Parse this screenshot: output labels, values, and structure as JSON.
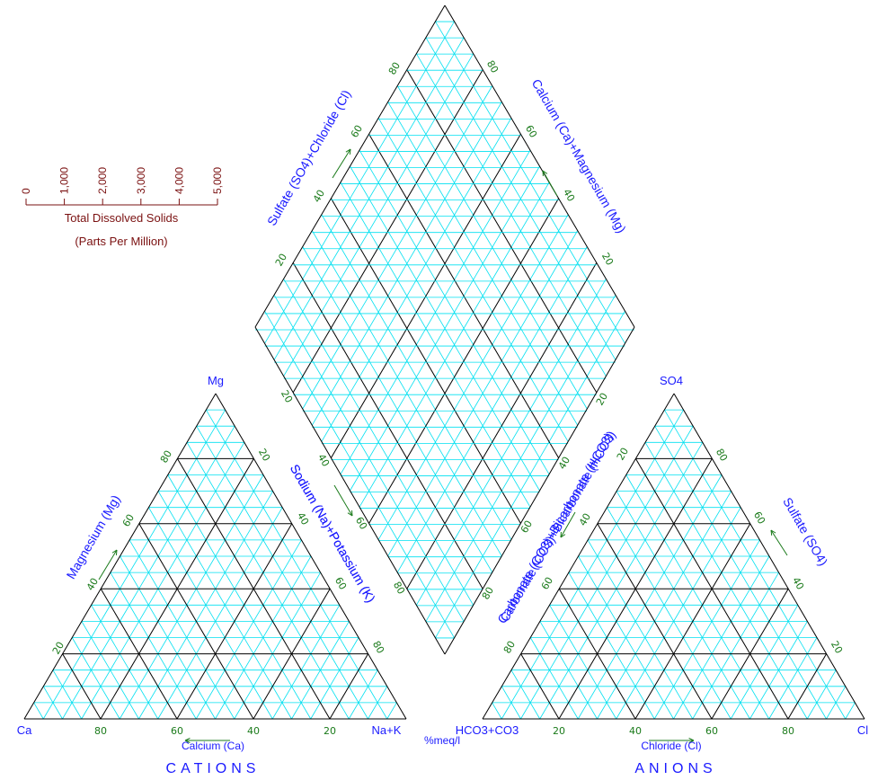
{
  "colors": {
    "minor_grid": "#00e0f0",
    "major_grid": "#000000",
    "text": "#1a1aff",
    "tick": "#1a7a1a",
    "tds": "#7a1010"
  },
  "tds_scale": {
    "ticks": [
      "0",
      "1,000",
      "2,000",
      "3,000",
      "4,000",
      "5,000"
    ],
    "title": "Total Dissolved Solids",
    "subtitle": "(Parts Per Million)"
  },
  "cations": {
    "title": "CATIONS",
    "top_vertex": "Mg",
    "left_vertex": "Ca",
    "right_vertex": "Na+K",
    "left_axis": "Magnesium (Mg)",
    "right_axis": "Sodium (Na)+Potassium (K)",
    "bottom_axis": "Calcium (Ca)",
    "left_ticks": [
      "20",
      "40",
      "60",
      "80"
    ],
    "right_ticks": [
      "20",
      "40",
      "60",
      "80"
    ],
    "bottom_ticks": [
      "80",
      "60",
      "40",
      "20"
    ]
  },
  "anions": {
    "title": "ANIONS",
    "top_vertex": "SO4",
    "left_vertex": "HCO3+CO3",
    "right_vertex": "Cl",
    "left_axis": "Carbonate (CO3)+Bicarbonate (HCO3)",
    "right_axis": "Sulfate (SO4)",
    "bottom_axis": "Chloride (Cl)",
    "left_ticks": [
      "80",
      "60",
      "40",
      "20"
    ],
    "right_ticks": [
      "80",
      "60",
      "40",
      "20"
    ],
    "bottom_ticks": [
      "20",
      "40",
      "60",
      "80"
    ]
  },
  "diamond": {
    "upper_left_axis": "Sulfate (SO4)+Chloride (Cl)",
    "upper_right_axis": "Calcium (Ca)+Magnesium (Mg)",
    "lower_left_axis": "Sodium (Na)+Potassium (K)",
    "lower_right_axis": "Carbonate (CO3)+Bicarbonate (HCO3)",
    "upper_left_ticks": [
      "20",
      "40",
      "60",
      "80"
    ],
    "upper_right_ticks": [
      "80",
      "60",
      "40",
      "20"
    ],
    "lower_left_ticks": [
      "20",
      "40",
      "60",
      "80"
    ],
    "lower_right_ticks": [
      "80",
      "60",
      "40",
      "20"
    ]
  },
  "unit_label": "%meq/l"
}
